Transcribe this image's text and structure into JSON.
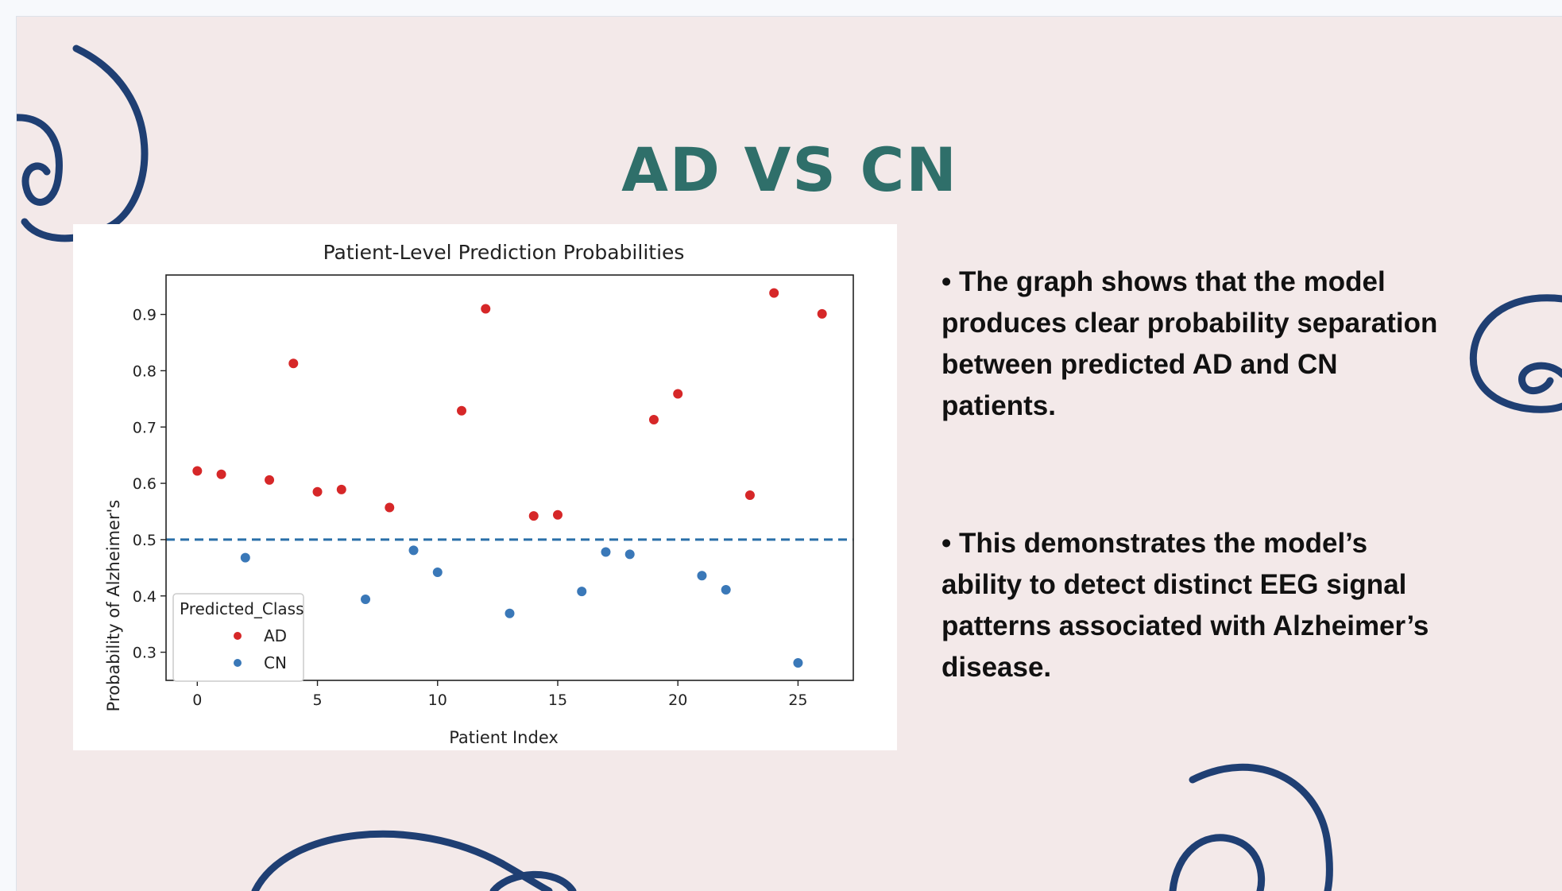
{
  "slide": {
    "title": "AD vs CN",
    "bullets": [
      "• The graph shows that the model produces clear probability separation between predicted AD and CN patients.",
      "• This demonstrates the model’s ability to detect distinct EEG signal patterns associated with Alzheimer’s disease."
    ]
  },
  "colors": {
    "title": "#2f6f6a",
    "swirl": "#1f3f73",
    "ad": "#d62728",
    "cn": "#3a78b8",
    "threshold": "#2a6fa8"
  },
  "chart_data": {
    "type": "scatter",
    "title": "Patient-Level Prediction Probabilities",
    "xlabel": "Patient Index",
    "ylabel": "Probability of Alzheimer's",
    "xlim": [
      -1.3,
      27.3
    ],
    "ylim": [
      0.25,
      0.97
    ],
    "xticks": [
      0,
      5,
      10,
      15,
      20,
      25
    ],
    "yticks": [
      0.3,
      0.4,
      0.5,
      0.6,
      0.7,
      0.8,
      0.9
    ],
    "threshold": 0.5,
    "legend": {
      "title": "Predicted_Class",
      "position": "lower-left",
      "entries": [
        "AD",
        "CN"
      ]
    },
    "series": [
      {
        "name": "AD",
        "points": [
          [
            0,
            0.622
          ],
          [
            1,
            0.616
          ],
          [
            3,
            0.606
          ],
          [
            4,
            0.813
          ],
          [
            5,
            0.585
          ],
          [
            6,
            0.589
          ],
          [
            8,
            0.557
          ],
          [
            11,
            0.729
          ],
          [
            12,
            0.91
          ],
          [
            14,
            0.542
          ],
          [
            15,
            0.544
          ],
          [
            19,
            0.713
          ],
          [
            20,
            0.759
          ],
          [
            23,
            0.579
          ],
          [
            24,
            0.938
          ],
          [
            26,
            0.901
          ]
        ]
      },
      {
        "name": "CN",
        "points": [
          [
            2,
            0.468
          ],
          [
            7,
            0.394
          ],
          [
            9,
            0.481
          ],
          [
            10,
            0.442
          ],
          [
            13,
            0.369
          ],
          [
            16,
            0.408
          ],
          [
            17,
            0.478
          ],
          [
            18,
            0.474
          ],
          [
            21,
            0.436
          ],
          [
            22,
            0.411
          ],
          [
            25,
            0.281
          ]
        ]
      }
    ]
  }
}
